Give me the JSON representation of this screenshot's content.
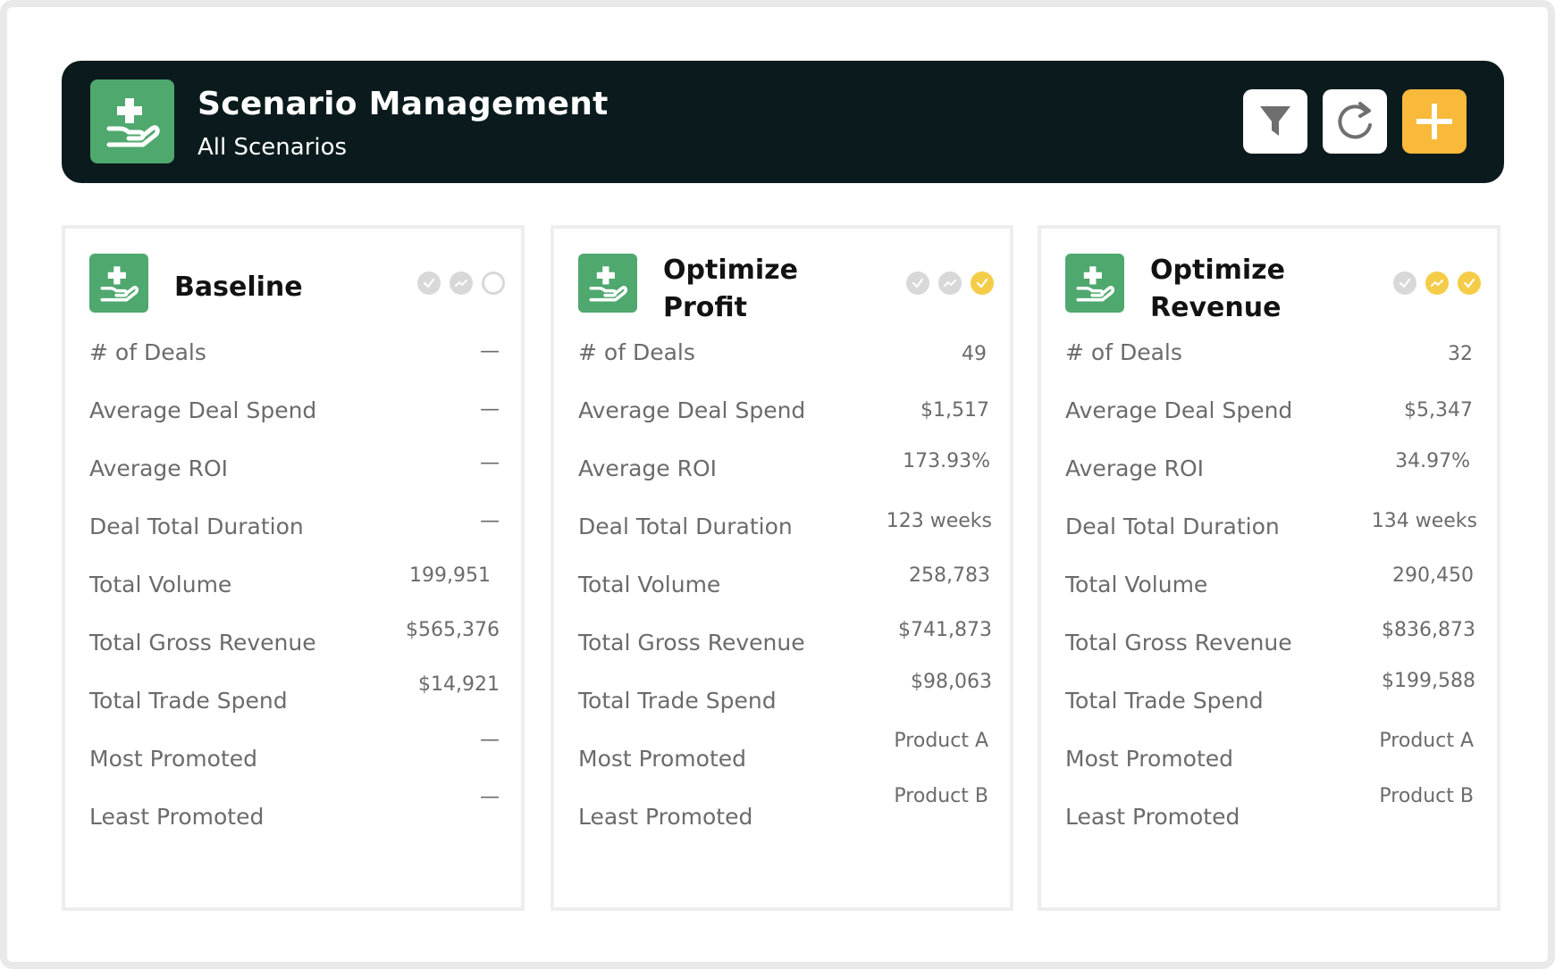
{
  "header": {
    "title": "Scenario Management",
    "subtitle": "All Scenarios",
    "logo_icon": "hand-plus-icon",
    "buttons": [
      {
        "name": "filter-button",
        "icon": "filter-icon"
      },
      {
        "name": "refresh-button",
        "icon": "refresh-icon"
      },
      {
        "name": "add-scenario-button",
        "icon": "plus-icon"
      }
    ]
  },
  "colors": {
    "header_bg": "#0b1b1d",
    "brand_green": "#4fa86e",
    "accent_yellow": "#f9b93a",
    "status_yellow": "#f5cc47",
    "status_grey": "#d8d8d8"
  },
  "metric_labels": [
    "# of Deals",
    "Average Deal Spend",
    "Average ROI",
    "Deal Total Duration",
    "Total Volume",
    "Total Gross Revenue",
    "Total Trade Spend",
    "Most Promoted",
    "Least Promoted"
  ],
  "cards": [
    {
      "title": "Baseline",
      "status": [
        "check-grey",
        "trend-grey",
        "circle-outline"
      ],
      "values": [
        "—",
        "—",
        "—",
        "—",
        "199,951",
        "$565,376",
        "$14,921",
        "—",
        "—"
      ]
    },
    {
      "title": "Optimize Profit",
      "status": [
        "check-grey",
        "trend-grey",
        "check-yellow"
      ],
      "values": [
        "49",
        "$1,517",
        "173.93%",
        "123 weeks",
        "258,783",
        "$741,873",
        "$98,063",
        "Product A",
        "Product B"
      ]
    },
    {
      "title": "Optimize Revenue",
      "status": [
        "check-grey",
        "trend-yellow",
        "check-yellow"
      ],
      "values": [
        "32",
        "$5,347",
        "34.97%",
        "134 weeks",
        "290,450",
        "$836,873",
        "$199,588",
        "Product A",
        "Product B"
      ]
    }
  ]
}
